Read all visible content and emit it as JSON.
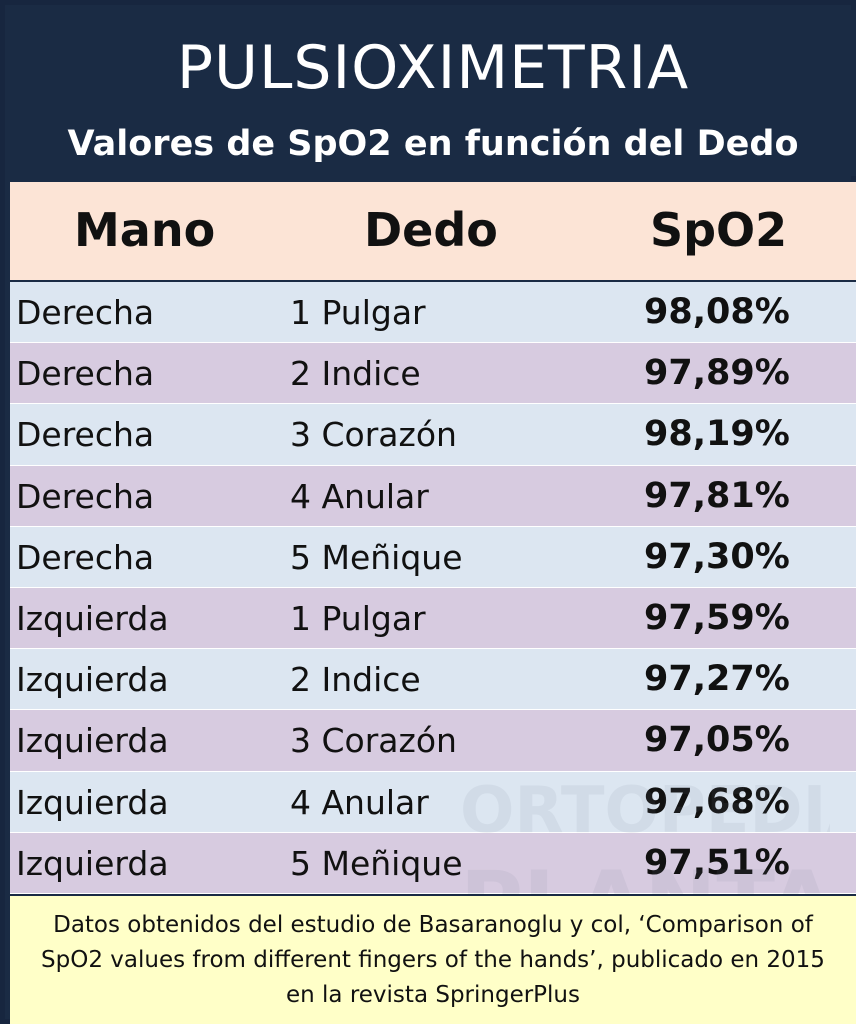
{
  "header": {
    "title": "PULSIOXIMETRIA",
    "subtitle": "Valores de SpO2 en función del Dedo"
  },
  "columns": {
    "mano": "Mano",
    "dedo": "Dedo",
    "spo2": "SpO2"
  },
  "chart_data": {
    "type": "table",
    "title": "PULSIOXIMETRIA",
    "subtitle": "Valores de SpO2 en función del Dedo",
    "columns": [
      "Mano",
      "Dedo",
      "SpO2"
    ],
    "rows": [
      {
        "mano": "Derecha",
        "dedo": "1 Pulgar",
        "spo2": "98,08%"
      },
      {
        "mano": "Derecha",
        "dedo": "2 Indice",
        "spo2": "97,89%"
      },
      {
        "mano": "Derecha",
        "dedo": "3 Corazón",
        "spo2": "98,19%"
      },
      {
        "mano": "Derecha",
        "dedo": "4 Anular",
        "spo2": "97,81%"
      },
      {
        "mano": "Derecha",
        "dedo": "5 Meñique",
        "spo2": "97,30%"
      },
      {
        "mano": "Izquierda",
        "dedo": "1 Pulgar",
        "spo2": "97,59%"
      },
      {
        "mano": "Izquierda",
        "dedo": "2 Indice",
        "spo2": "97,27%"
      },
      {
        "mano": "Izquierda",
        "dedo": "3 Corazón",
        "spo2": "97,05%"
      },
      {
        "mano": "Izquierda",
        "dedo": "4 Anular",
        "spo2": "97,68%"
      },
      {
        "mano": "Izquierda",
        "dedo": "5 Meñique",
        "spo2": "97,51%"
      }
    ]
  },
  "watermark": {
    "line1": "ORTOPEDIA",
    "line2": "PLANTA"
  },
  "footer": {
    "text": "Datos obtenidos del estudio de Basaranoglu y col, ‘Comparison of SpO2 values from different fingers of the hands’, publicado en 2015 en la revista SpringerPlus"
  },
  "colors": {
    "header_bg": "#1a2b44",
    "column_header_bg": "#fce4d6",
    "row_blue": "#dce6f1",
    "row_purple": "#d7cbe0",
    "footer_bg": "#ffffc8"
  }
}
